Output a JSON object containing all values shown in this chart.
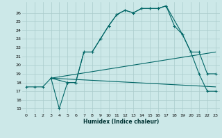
{
  "xlabel": "Humidex (Indice chaleur)",
  "bg_color": "#cce8e8",
  "grid_color": "#aacccc",
  "line_color": "#006666",
  "xlim": [
    -0.5,
    23.5
  ],
  "ylim": [
    14.5,
    27.2
  ],
  "yticks": [
    15,
    16,
    17,
    18,
    19,
    20,
    21,
    22,
    23,
    24,
    25,
    26
  ],
  "xticks": [
    0,
    1,
    2,
    3,
    4,
    5,
    6,
    7,
    8,
    9,
    10,
    11,
    12,
    13,
    14,
    15,
    16,
    17,
    18,
    19,
    20,
    21,
    22,
    23
  ],
  "series1_x": [
    0,
    1,
    2,
    3,
    4,
    5,
    6,
    7,
    8,
    9,
    10,
    11,
    12,
    13,
    14,
    15,
    16,
    17,
    18,
    19,
    20,
    21,
    22,
    23
  ],
  "series1_y": [
    17.5,
    17.5,
    17.5,
    18.5,
    15.0,
    18.0,
    18.0,
    21.5,
    21.5,
    23.0,
    24.5,
    25.8,
    26.3,
    26.0,
    26.5,
    26.5,
    26.5,
    26.8,
    24.5,
    23.5,
    21.5,
    19.0,
    17.0,
    17.0
  ],
  "series2_x": [
    3,
    23
  ],
  "series2_y": [
    18.5,
    17.5
  ],
  "series3_x": [
    3,
    23
  ],
  "series3_y": [
    18.5,
    21.5
  ],
  "series4_x": [
    3,
    5,
    6,
    7,
    8,
    9,
    10,
    11,
    12,
    13,
    14,
    15,
    16,
    17,
    19,
    20,
    21,
    22,
    23
  ],
  "series4_y": [
    18.5,
    18.0,
    18.0,
    21.5,
    21.5,
    23.0,
    24.5,
    25.8,
    26.3,
    26.0,
    26.5,
    26.5,
    26.5,
    26.8,
    23.5,
    21.5,
    21.5,
    19.0,
    19.0
  ]
}
